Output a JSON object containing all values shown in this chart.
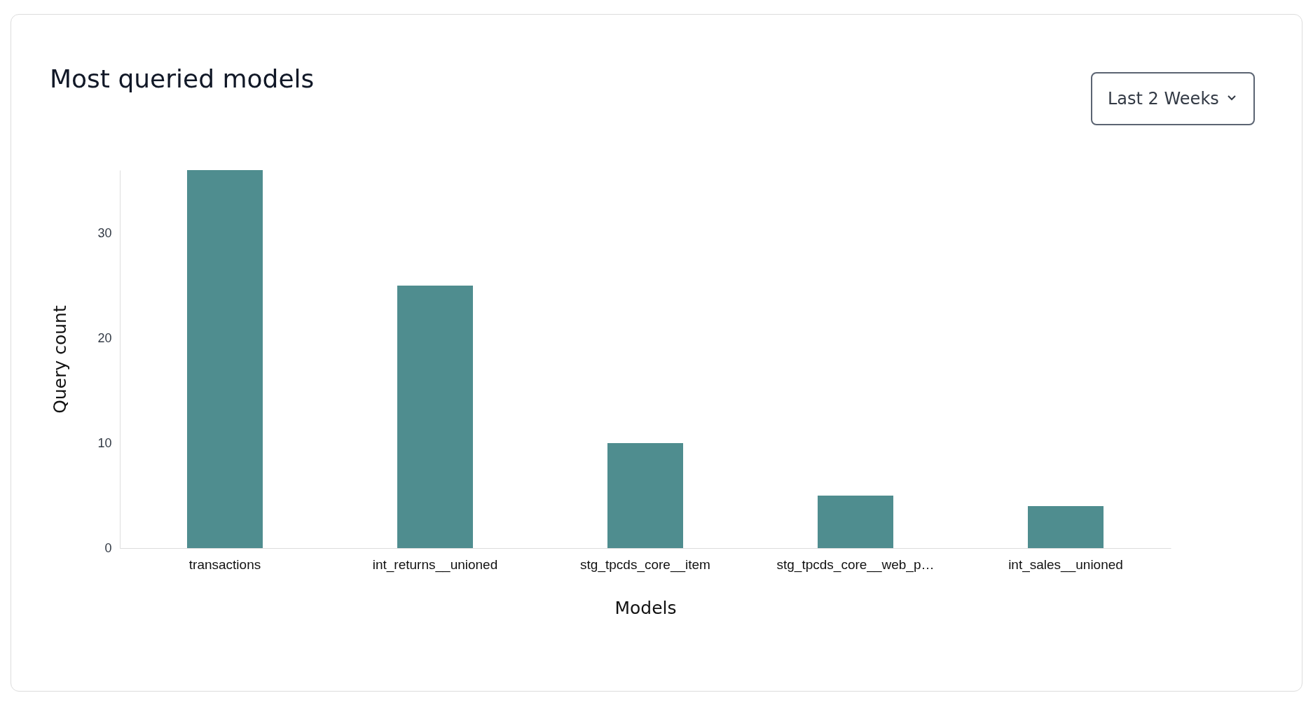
{
  "chart_data": {
    "type": "bar",
    "title": "Most queried models",
    "xlabel": "Models",
    "ylabel": "Query count",
    "categories": [
      "transactions",
      "int_returns__unioned",
      "stg_tpcds_core__item",
      "stg_tpcds_core__web_p…",
      "int_sales__unioned"
    ],
    "values": [
      36,
      25,
      10,
      5,
      4
    ],
    "color": "#4f8d8f",
    "ylim": [
      0,
      36
    ],
    "yticks": [
      0,
      10,
      20,
      30
    ],
    "annotations": [
      "Last 2 Weeks"
    ]
  }
}
